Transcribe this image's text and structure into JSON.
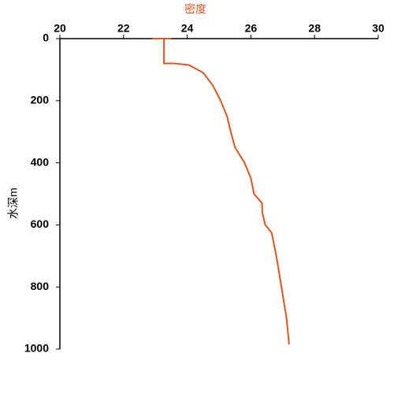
{
  "chart_data": {
    "type": "line",
    "title": "密度",
    "y_label": "水深m",
    "x": [
      22.9,
      23.5,
      23.27,
      23.27,
      23.6,
      24.05,
      24.5,
      24.8,
      25.05,
      25.25,
      25.37,
      25.5,
      25.8,
      26.0,
      26.1,
      26.35,
      26.36,
      26.45,
      26.65,
      26.8,
      26.96,
      27.12,
      27.2
    ],
    "y": [
      0,
      0,
      0,
      80,
      80,
      85,
      110,
      150,
      200,
      250,
      300,
      350,
      400,
      450,
      500,
      530,
      560,
      600,
      625,
      700,
      800,
      900,
      985
    ],
    "color": "#e0561c",
    "title_color": "#e0561c",
    "xlim": [
      20,
      30
    ],
    "xticks": [
      20,
      22,
      24,
      26,
      28,
      30
    ],
    "ylim": [
      0,
      1000
    ],
    "yticks": [
      0,
      200,
      400,
      600,
      800,
      1000
    ],
    "y_inverted": true
  }
}
